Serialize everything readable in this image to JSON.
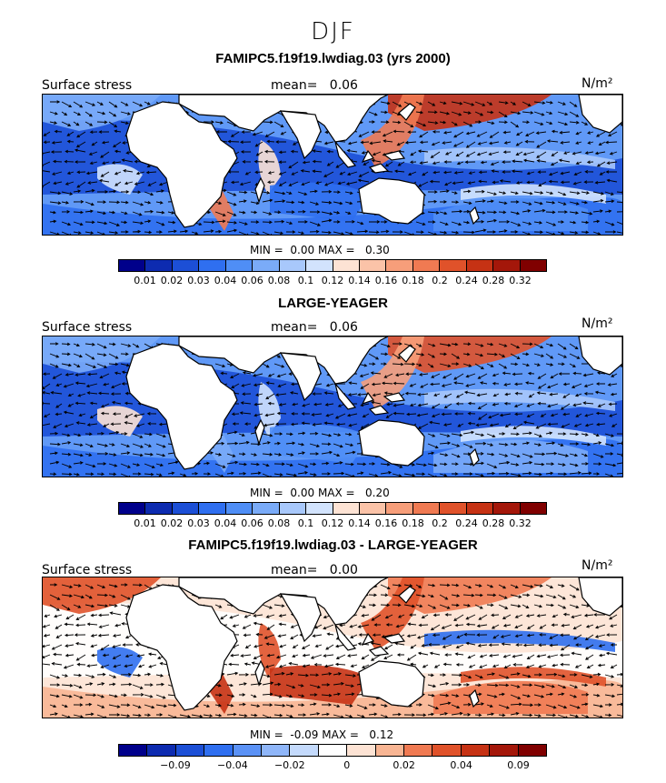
{
  "season": "DJF",
  "colors": {
    "sequential": [
      "#00008b",
      "#0d2bb0",
      "#1c4fd6",
      "#2f6ff0",
      "#4f8ef6",
      "#7aabf8",
      "#a8c8fb",
      "#d2e3fd",
      "#fde3d4",
      "#fbc3a8",
      "#f79e7a",
      "#f07a52",
      "#e0522a",
      "#c63214",
      "#a4170a",
      "#800000"
    ],
    "difference": [
      "#00008b",
      "#0d2bb0",
      "#1c4fd6",
      "#2f6ff0",
      "#5b92f6",
      "#8fb6f9",
      "#c4dafc",
      "#ffffff",
      "#fde3d4",
      "#f8b593",
      "#f07a52",
      "#e0522a",
      "#c63214",
      "#a4170a",
      "#800000"
    ],
    "land": "#ffffff"
  },
  "panels": [
    {
      "title": "FAMIPC5.f19f19.lwdiag.03 (yrs 2000)",
      "variable": "Surface stress",
      "mean_label": "mean=",
      "mean_value": "0.06",
      "units": "N/m²",
      "min_label": "MIN =",
      "min_value": "0.00",
      "max_label": "MAX =",
      "max_value": "0.30",
      "ticks": [
        "0.01",
        "0.02",
        "0.03",
        "0.04",
        "0.06",
        "0.08",
        "0.1",
        "0.12",
        "0.14",
        "0.16",
        "0.18",
        "0.2",
        "0.24",
        "0.28",
        "0.32"
      ]
    },
    {
      "title": "LARGE-YEAGER",
      "variable": "Surface stress",
      "units": "N/m²",
      "mean_label": "mean=",
      "mean_value": "0.06",
      "min_label": "MIN =",
      "min_value": "0.00",
      "max_label": "MAX =",
      "max_value": "0.20",
      "ticks": [
        "0.01",
        "0.02",
        "0.03",
        "0.04",
        "0.06",
        "0.08",
        "0.1",
        "0.12",
        "0.14",
        "0.16",
        "0.18",
        "0.2",
        "0.24",
        "0.28",
        "0.32"
      ]
    },
    {
      "title": "FAMIPC5.f19f19.lwdiag.03 - LARGE-YEAGER",
      "variable": "Surface stress",
      "units": "N/m²",
      "mean_label": "mean=",
      "mean_value": "0.00",
      "min_label": "MIN =",
      "min_value": "-0.09",
      "max_label": "MAX =",
      "max_value": "0.12",
      "ticks": [
        "-0.09",
        "-0.04",
        "-0.02",
        "0",
        "0.02",
        "0.04",
        "0.09"
      ]
    }
  ]
}
